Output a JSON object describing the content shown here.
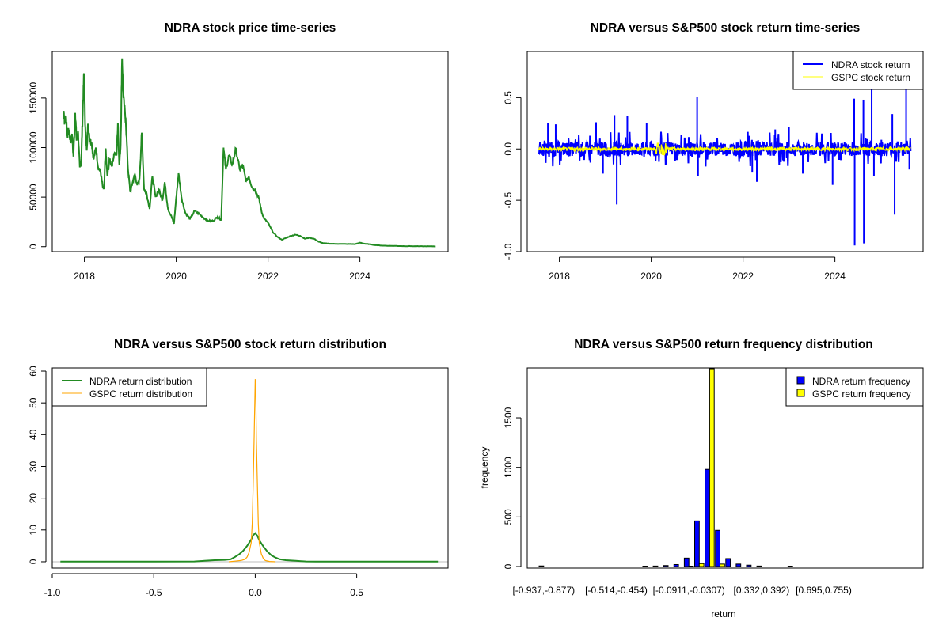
{
  "chart_data": [
    {
      "id": "price",
      "type": "line",
      "title": "NDRA stock price time-series",
      "xlabel": "",
      "ylabel": "",
      "xlim": [
        2017.3,
        2025.92
      ],
      "ylim": [
        -5000,
        197000
      ],
      "xticks": [
        2018,
        2020,
        2022,
        2024
      ],
      "xtick_labels": [
        "2018",
        "2020",
        "2022",
        "2024"
      ],
      "yticks": [
        0,
        50000,
        100000,
        150000
      ],
      "ytick_labels": [
        "0",
        "50000",
        "100000",
        "150000"
      ],
      "grid": false,
      "series": [
        {
          "name": "NDRA price",
          "color": "#228B22",
          "x": [
            2017.55,
            2017.57,
            2017.6,
            2017.63,
            2017.66,
            2017.7,
            2017.73,
            2017.76,
            2017.8,
            2017.83,
            2017.86,
            2017.9,
            2017.93,
            2017.96,
            2017.99,
            2018.02,
            2018.05,
            2018.08,
            2018.12,
            2018.16,
            2018.2,
            2018.25,
            2018.3,
            2018.35,
            2018.4,
            2018.43,
            2018.46,
            2018.5,
            2018.55,
            2018.6,
            2018.65,
            2018.7,
            2018.73,
            2018.76,
            2018.79,
            2018.82,
            2018.85,
            2018.9,
            2018.95,
            2019.0,
            2019.05,
            2019.1,
            2019.15,
            2019.2,
            2019.25,
            2019.3,
            2019.35,
            2019.42,
            2019.48,
            2019.55,
            2019.62,
            2019.7,
            2019.75,
            2019.82,
            2019.9,
            2019.95,
            2020.0,
            2020.05,
            2020.12,
            2020.2,
            2020.3,
            2020.4,
            2020.5,
            2020.6,
            2020.7,
            2020.8,
            2020.9,
            2020.98,
            2021.03,
            2021.08,
            2021.15,
            2021.22,
            2021.3,
            2021.38,
            2021.45,
            2021.52,
            2021.58,
            2021.65,
            2021.72,
            2021.8,
            2021.86,
            2021.92,
            2022.0,
            2022.1,
            2022.2,
            2022.3,
            2022.4,
            2022.5,
            2022.6,
            2022.7,
            2022.8,
            2022.9,
            2023.0,
            2023.1,
            2023.2,
            2023.35,
            2023.5,
            2023.7,
            2023.9,
            2024.0,
            2024.1,
            2024.2,
            2024.35,
            2024.5,
            2024.7,
            2024.9,
            2025.1,
            2025.3,
            2025.5,
            2025.65
          ],
          "y": [
            137000,
            125000,
            132000,
            112000,
            118000,
            105000,
            114000,
            91000,
            135000,
            107000,
            117000,
            80000,
            85000,
            130000,
            175000,
            120000,
            97000,
            124000,
            108000,
            104000,
            88000,
            100000,
            80000,
            76000,
            60000,
            58000,
            99000,
            71000,
            88000,
            82000,
            94000,
            92000,
            125000,
            82000,
            103000,
            190000,
            150000,
            128000,
            78000,
            55000,
            65000,
            73000,
            62000,
            68000,
            115000,
            58000,
            55000,
            38000,
            71000,
            50000,
            57000,
            47000,
            65000,
            38000,
            30000,
            23000,
            50000,
            74000,
            48000,
            34000,
            28000,
            36000,
            33000,
            29000,
            26000,
            26000,
            30000,
            27000,
            100000,
            78000,
            92000,
            83000,
            99000,
            78000,
            82000,
            66000,
            71000,
            60000,
            57000,
            49000,
            35000,
            28000,
            24000,
            15000,
            10000,
            7000,
            9000,
            11000,
            12000,
            11000,
            8000,
            9000,
            8000,
            5000,
            3500,
            3000,
            2800,
            2700,
            2600,
            4000,
            3000,
            2500,
            1500,
            1000,
            800,
            600,
            500,
            400,
            400,
            300
          ]
        }
      ]
    },
    {
      "id": "returns",
      "type": "line",
      "title": "NDRA versus S&P500 stock return time-series",
      "xlabel": "",
      "ylabel": "",
      "xlim": [
        2017.3,
        2025.92
      ],
      "ylim": [
        -1.0,
        0.95
      ],
      "xticks": [
        2018,
        2020,
        2022,
        2024
      ],
      "xtick_labels": [
        "2018",
        "2020",
        "2022",
        "2024"
      ],
      "yticks": [
        -1.0,
        -0.5,
        0.0,
        0.5
      ],
      "ytick_labels": [
        "-1.0",
        "-0.5",
        "0.0",
        "0.5"
      ],
      "grid": false,
      "legend": {
        "position": "top-right",
        "entries": [
          {
            "label": "NDRA stock return",
            "color": "#0000FF",
            "style": "line-thick"
          },
          {
            "label": "GSPC stock return",
            "color": "#FFFF00",
            "style": "line-thin"
          }
        ]
      },
      "series": [
        {
          "name": "NDRA stock return",
          "color": "#0000FF",
          "note": "daily returns; envelope typically within +/-0.15; notable spikes listed",
          "spikes": [
            {
              "x": 2017.75,
              "y": 0.25
            },
            {
              "x": 2017.92,
              "y": 0.24
            },
            {
              "x": 2018.8,
              "y": 0.26
            },
            {
              "x": 2018.95,
              "y": -0.24
            },
            {
              "x": 2019.2,
              "y": 0.33
            },
            {
              "x": 2019.25,
              "y": -0.54
            },
            {
              "x": 2019.48,
              "y": 0.32
            },
            {
              "x": 2019.9,
              "y": 0.25
            },
            {
              "x": 2021.0,
              "y": 0.51
            },
            {
              "x": 2021.02,
              "y": -0.26
            },
            {
              "x": 2022.2,
              "y": -0.23
            },
            {
              "x": 2022.3,
              "y": -0.32
            },
            {
              "x": 2022.7,
              "y": 0.19
            },
            {
              "x": 2023.0,
              "y": 0.21
            },
            {
              "x": 2023.3,
              "y": -0.24
            },
            {
              "x": 2023.95,
              "y": -0.35
            },
            {
              "x": 2024.42,
              "y": 0.49
            },
            {
              "x": 2024.43,
              "y": -0.94
            },
            {
              "x": 2024.62,
              "y": 0.48
            },
            {
              "x": 2024.63,
              "y": -0.92
            },
            {
              "x": 2024.8,
              "y": 0.62
            },
            {
              "x": 2024.85,
              "y": -0.26
            },
            {
              "x": 2025.25,
              "y": 0.34
            },
            {
              "x": 2025.3,
              "y": -0.64
            },
            {
              "x": 2025.55,
              "y": 0.62
            },
            {
              "x": 2025.62,
              "y": -0.2
            }
          ]
        },
        {
          "name": "GSPC stock return",
          "color": "#FFFF00",
          "note": "daily returns; envelope typically within +/-0.03, max ~ +/-0.1 in early 2020"
        }
      ]
    },
    {
      "id": "density",
      "type": "line",
      "title": "NDRA versus S&P500 stock return distribution",
      "xlabel": "",
      "ylabel": "",
      "xlim": [
        -1.0,
        0.95
      ],
      "ylim": [
        -2,
        61
      ],
      "xticks": [
        -1.0,
        -0.5,
        0.0,
        0.5
      ],
      "xtick_labels": [
        "-1.0",
        "-0.5",
        "0.0",
        "0.5"
      ],
      "yticks": [
        0,
        10,
        20,
        30,
        40,
        50,
        60
      ],
      "ytick_labels": [
        "0",
        "10",
        "20",
        "30",
        "40",
        "50",
        "60"
      ],
      "grid": false,
      "legend": {
        "position": "top-left",
        "entries": [
          {
            "label": "NDRA return distribution",
            "color": "#228B22",
            "style": "line-thick"
          },
          {
            "label": "GSPC return distribution",
            "color": "#FFA500",
            "style": "line-thin"
          }
        ]
      },
      "series": [
        {
          "name": "NDRA return distribution",
          "color": "#228B22",
          "x": [
            -0.96,
            -0.5,
            -0.3,
            -0.25,
            -0.2,
            -0.15,
            -0.12,
            -0.1,
            -0.08,
            -0.06,
            -0.04,
            -0.02,
            -0.01,
            0.0,
            0.01,
            0.02,
            0.04,
            0.06,
            0.08,
            0.1,
            0.12,
            0.15,
            0.2,
            0.25,
            0.3,
            0.5,
            0.9
          ],
          "y": [
            0.05,
            0.05,
            0.1,
            0.3,
            0.5,
            0.6,
            0.8,
            1.5,
            2.3,
            3.4,
            5.0,
            7.0,
            8.3,
            9.0,
            8.2,
            6.8,
            4.8,
            3.2,
            2.0,
            1.3,
            0.8,
            0.5,
            0.3,
            0.1,
            0.05,
            0.05,
            0.05
          ]
        },
        {
          "name": "GSPC return distribution",
          "color": "#FFA500",
          "x": [
            -0.13,
            -0.1,
            -0.07,
            -0.05,
            -0.04,
            -0.03,
            -0.02,
            -0.015,
            -0.01,
            -0.005,
            0.0,
            0.003,
            0.006,
            0.01,
            0.015,
            0.02,
            0.03,
            0.04,
            0.05,
            0.07,
            0.1
          ],
          "y": [
            0.0,
            0.2,
            0.4,
            0.8,
            1.5,
            3.0,
            6.0,
            12.0,
            24.0,
            40.0,
            57.5,
            52.0,
            38.0,
            26.0,
            12.0,
            6.0,
            2.5,
            1.0,
            0.4,
            0.1,
            0.0
          ]
        }
      ]
    },
    {
      "id": "histogram",
      "type": "bar",
      "title": "NDRA versus S&P500 return frequency distribution",
      "xlabel": "return",
      "ylabel": "frequency",
      "ylim": [
        0,
        1995
      ],
      "yticks": [
        0,
        500,
        1000,
        1500
      ],
      "ytick_labels": [
        "0",
        "500",
        "1000",
        "1500"
      ],
      "grid": false,
      "category_labels_shown": {
        "0": "[-0.937,-0.877)",
        "7": "[-0.514,-0.454)",
        "14": "[-0.0911,-0.0307)",
        "21": "[0.332,0.392)",
        "27": "[0.695,0.755)"
      },
      "bin_start": -0.937,
      "bin_width": 0.0604,
      "n_bins": 31,
      "legend": {
        "position": "top-right",
        "entries": [
          {
            "label": "NDRA return frequency",
            "color": "#0000FF",
            "style": "box"
          },
          {
            "label": "GSPC return frequency",
            "color": "#FFFF00",
            "style": "box"
          }
        ]
      },
      "series": [
        {
          "name": "NDRA return frequency",
          "color": "#0000FF",
          "values": [
            6,
            0,
            0,
            0,
            0,
            0,
            0,
            0,
            0,
            0,
            4,
            5,
            10,
            20,
            85,
            460,
            980,
            365,
            80,
            25,
            14,
            5,
            0,
            0,
            4,
            0,
            0,
            0,
            0,
            0,
            0
          ]
        },
        {
          "name": "GSPC return frequency",
          "color": "#FFFF00",
          "values": [
            0,
            0,
            0,
            0,
            0,
            0,
            0,
            0,
            0,
            0,
            0,
            0,
            0,
            0,
            4,
            30,
            2000,
            25,
            0,
            0,
            0,
            0,
            0,
            0,
            0,
            0,
            0,
            0,
            0,
            0,
            0
          ]
        }
      ]
    }
  ]
}
